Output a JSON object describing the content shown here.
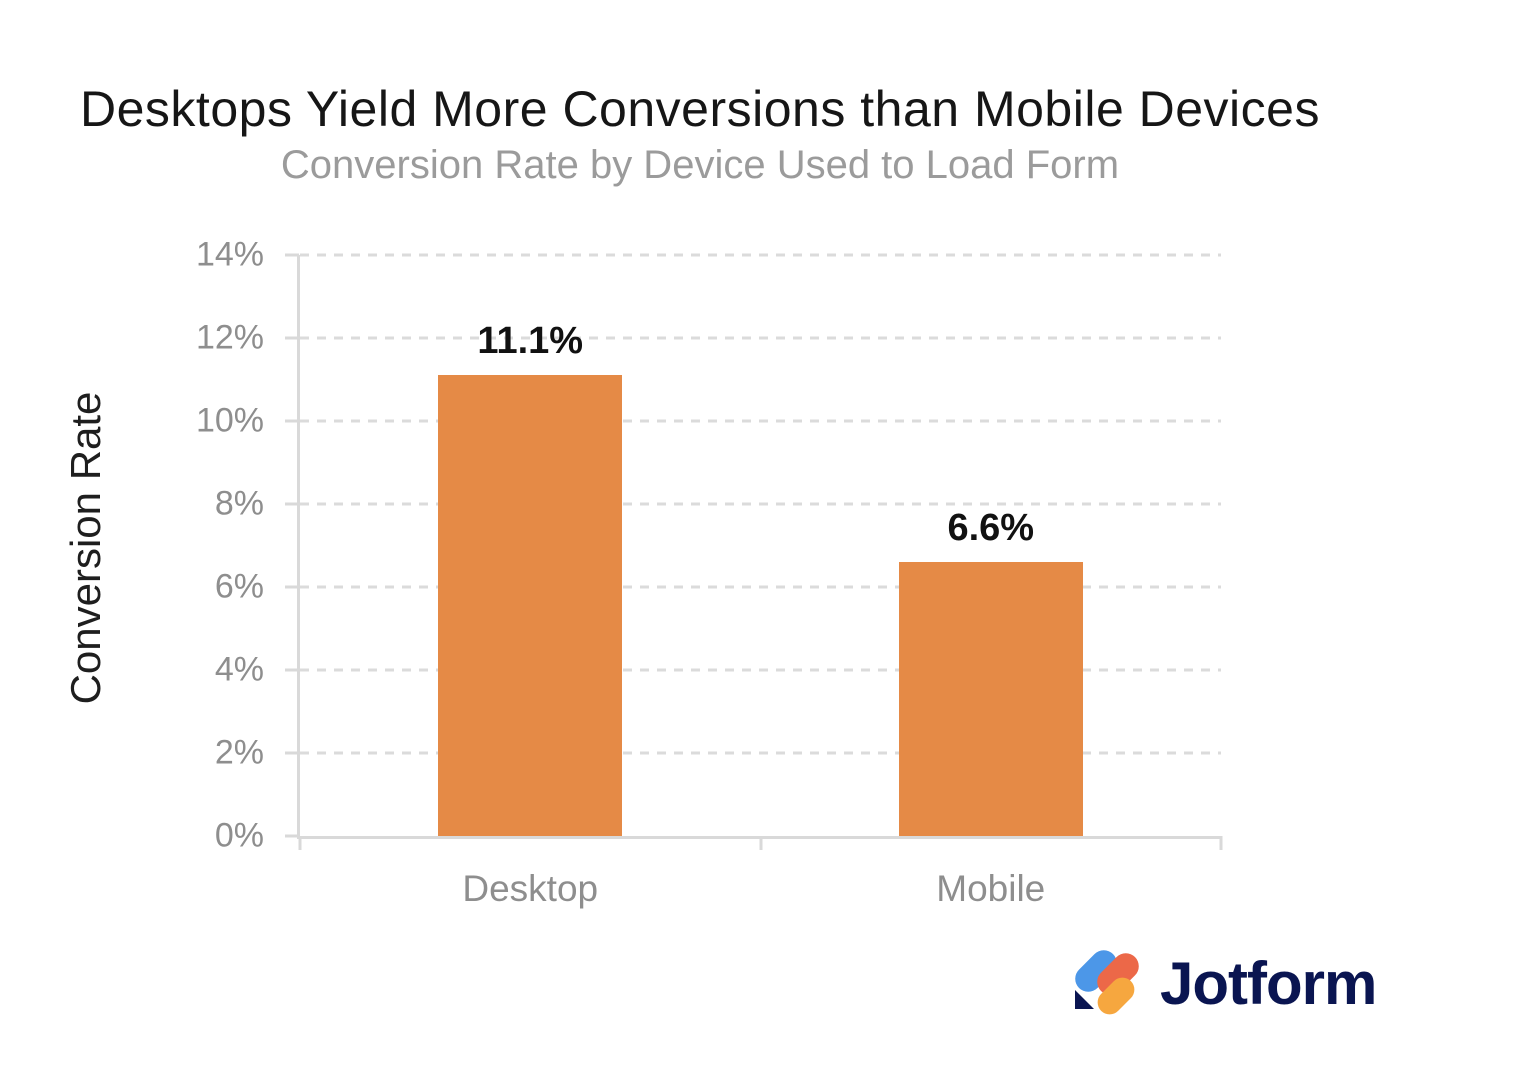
{
  "chart_data": {
    "type": "bar",
    "title": "Desktops Yield More Conversions than Mobile Devices",
    "subtitle": "Conversion Rate by Device Used to Load Form",
    "ylabel": "Conversion Rate",
    "xlabel": "",
    "categories": [
      "Desktop",
      "Mobile"
    ],
    "values": [
      11.1,
      6.6
    ],
    "value_labels": [
      "11.1%",
      "6.6%"
    ],
    "ylim": [
      0,
      14
    ],
    "ytick_step": 2,
    "ytick_labels": [
      "0%",
      "2%",
      "4%",
      "6%",
      "8%",
      "10%",
      "12%",
      "14%"
    ],
    "grid": "horizontal-dashed",
    "legend_position": "none",
    "bar_color": "#E58A46",
    "axis_color": "#D9D9D9",
    "tick_label_color": "#8E8E8E",
    "value_label_color": "#111111"
  },
  "branding": {
    "wordmark": "Jotform",
    "wordmark_color": "#0A1551",
    "logo_colors": {
      "blue": "#4C97E8",
      "orange": "#EC6848",
      "yellow": "#F6A73F",
      "navy": "#0A1551"
    }
  }
}
